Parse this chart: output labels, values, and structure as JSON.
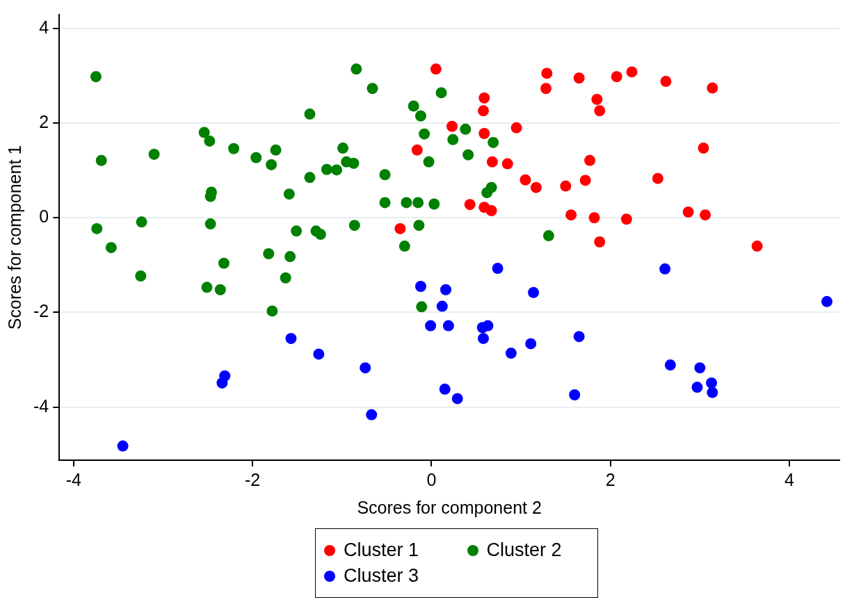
{
  "chart_data": {
    "type": "scatter",
    "xlabel": "Scores for component 2",
    "ylabel": "Scores for component 1",
    "xlim": [
      -4.16,
      4.56
    ],
    "xticks": [
      -4,
      -2,
      0,
      2,
      4
    ],
    "ylim": [
      -5.12,
      4.29
    ],
    "yticks": [
      -4,
      -2,
      0,
      2,
      4
    ],
    "grid": "y",
    "legend": "bottom",
    "marker": "circle",
    "series": [
      {
        "name": "Cluster 1",
        "color": "#ff0000",
        "x": [
          0.05,
          1.29,
          1.65,
          2.07,
          2.24,
          2.62,
          3.14,
          1.28,
          1.85,
          1.88,
          0.59,
          0.58,
          0.23,
          0.95,
          0.59,
          -0.16,
          0.68,
          0.85,
          3.04,
          1.77,
          1.05,
          1.17,
          1.5,
          1.72,
          2.53,
          0.43,
          0.59,
          0.67,
          1.56,
          1.82,
          2.18,
          2.87,
          3.06,
          -0.35,
          1.88,
          3.64
        ],
        "values": [
          3.14,
          3.05,
          2.95,
          2.98,
          3.08,
          2.88,
          2.74,
          2.73,
          2.5,
          2.26,
          2.53,
          2.26,
          1.93,
          1.9,
          1.78,
          1.43,
          1.18,
          1.14,
          1.47,
          1.21,
          0.8,
          0.64,
          0.67,
          0.79,
          0.83,
          0.28,
          0.22,
          0.15,
          0.06,
          0.0,
          -0.03,
          0.12,
          0.06,
          -0.23,
          -0.51,
          -0.6
        ]
      },
      {
        "name": "Cluster 2",
        "color": "#008000",
        "x": [
          -3.75,
          -0.84,
          -0.66,
          0.11,
          -0.2,
          -0.12,
          -1.36,
          -0.08,
          0.38,
          0.69,
          0.24,
          0.41,
          -0.03,
          -2.54,
          -2.48,
          -3.69,
          -3.1,
          -2.21,
          -1.96,
          -1.74,
          -1.79,
          -0.99,
          -1.17,
          -1.06,
          -0.95,
          -0.87,
          -1.36,
          -2.46,
          -2.47,
          -1.59,
          -0.52,
          -0.52,
          -0.28,
          -0.15,
          0.03,
          0.67,
          0.62,
          -3.74,
          -3.58,
          -3.24,
          -2.47,
          -3.25,
          -2.51,
          -2.36,
          -2.32,
          -1.82,
          -1.58,
          -1.51,
          -1.29,
          -1.24,
          -0.86,
          -0.14,
          -0.3,
          -1.63,
          -1.78,
          -0.11,
          1.31
        ],
        "values": [
          2.98,
          3.14,
          2.73,
          2.64,
          2.36,
          2.15,
          2.19,
          1.77,
          1.87,
          1.59,
          1.65,
          1.33,
          1.18,
          1.8,
          1.62,
          1.21,
          1.34,
          1.46,
          1.27,
          1.43,
          1.12,
          1.47,
          1.02,
          1.01,
          1.18,
          1.15,
          0.85,
          0.54,
          0.45,
          0.5,
          0.91,
          0.32,
          0.32,
          0.32,
          0.29,
          0.64,
          0.53,
          -0.23,
          -0.63,
          -0.09,
          -0.13,
          -1.23,
          -1.47,
          -1.52,
          -0.96,
          -0.76,
          -0.82,
          -0.28,
          -0.28,
          -0.35,
          -0.16,
          -0.16,
          -0.6,
          -1.27,
          -1.97,
          -1.88,
          -0.38
        ]
      },
      {
        "name": "Cluster 3",
        "color": "#0000ff",
        "x": [
          -0.12,
          0.16,
          0.74,
          1.14,
          2.61,
          4.42,
          0.12,
          -0.01,
          0.19,
          0.57,
          0.63,
          0.58,
          0.89,
          1.11,
          1.65,
          -1.57,
          -1.26,
          -0.74,
          -2.31,
          -2.34,
          0.15,
          0.29,
          -0.67,
          1.6,
          2.67,
          3.0,
          2.97,
          3.13,
          3.14,
          -3.45
        ],
        "values": [
          -1.45,
          -1.52,
          -1.07,
          -1.58,
          -1.08,
          -1.77,
          -1.87,
          -2.28,
          -2.28,
          -2.32,
          -2.28,
          -2.55,
          -2.86,
          -2.66,
          -2.51,
          -2.55,
          -2.88,
          -3.17,
          -3.34,
          -3.49,
          -3.62,
          -3.82,
          -4.16,
          -3.74,
          -3.11,
          -3.17,
          -3.58,
          -3.49,
          -3.69,
          -4.82
        ]
      }
    ]
  }
}
